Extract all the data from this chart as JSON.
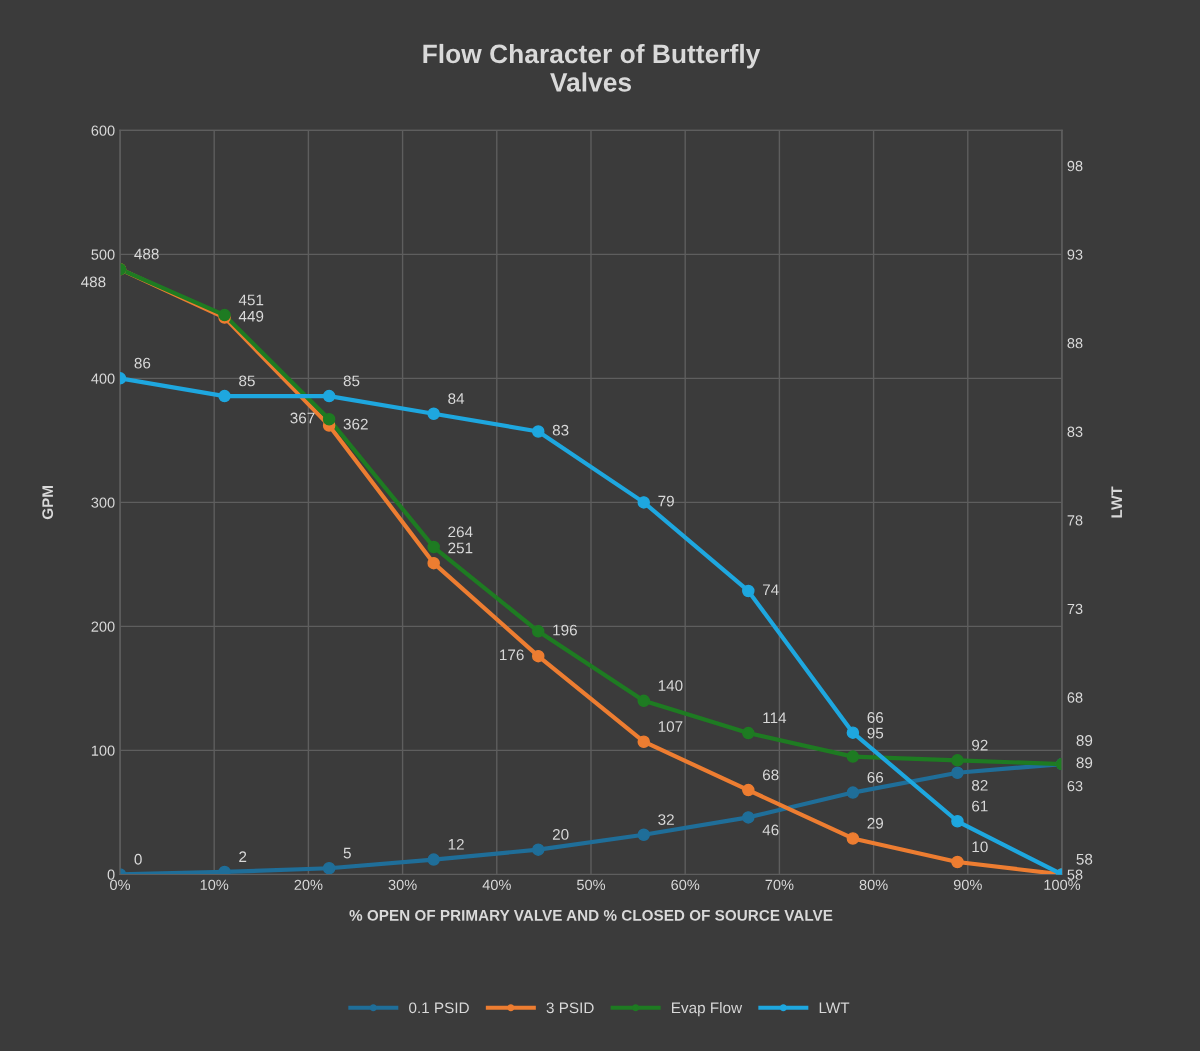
{
  "chart_data": {
    "type": "line",
    "title": "Flow Character of Butterfly\nValves",
    "xlabel": "% OPEN OF PRIMARY VALVE AND % CLOSED OF SOURCE VALVE",
    "ylabel": "GPM",
    "y2label": "LWT",
    "x": [
      0,
      11.1,
      22.2,
      33.3,
      44.4,
      55.6,
      66.7,
      77.8,
      88.9,
      100
    ],
    "series": [
      {
        "name": "0.1 PSID",
        "color": "#1f6e99",
        "values": [
          0,
          2,
          5,
          12,
          20,
          32,
          46,
          66,
          82,
          89
        ]
      },
      {
        "name": "3 PSID",
        "color": "#ed7d31",
        "values": [
          488,
          449,
          362,
          251,
          176,
          107,
          68,
          29,
          10,
          0
        ],
        "value_labels": [
          "488",
          "449",
          "362",
          "251",
          "176",
          "107",
          "68",
          "29",
          "10",
          null
        ]
      },
      {
        "name": "Evap Flow",
        "color": "#1e7b22",
        "values": [
          488,
          451,
          367,
          264,
          196,
          140,
          114,
          95,
          92,
          89
        ]
      },
      {
        "name": "LWT",
        "color": "#1ea7df",
        "axis": "y2",
        "values": [
          86,
          85,
          85,
          84,
          83,
          79,
          74,
          66,
          61,
          58
        ]
      }
    ],
    "xlim": [
      0,
      100
    ],
    "xticks": [
      {
        "value": 0,
        "label": "0%"
      },
      {
        "value": 10,
        "label": "10%"
      },
      {
        "value": 20,
        "label": "20%"
      },
      {
        "value": 30,
        "label": "30%"
      },
      {
        "value": 40,
        "label": "40%"
      },
      {
        "value": 50,
        "label": "50%"
      },
      {
        "value": 60,
        "label": "60%"
      },
      {
        "value": 70,
        "label": "70%"
      },
      {
        "value": 80,
        "label": "80%"
      },
      {
        "value": 90,
        "label": "90%"
      },
      {
        "value": 100,
        "label": "100%"
      }
    ],
    "ylim": [
      0,
      600
    ],
    "yticks": [
      0,
      100,
      200,
      300,
      400,
      500,
      600
    ],
    "y2lim": [
      58,
      100
    ],
    "y2ticks": [
      58,
      63,
      68,
      73,
      78,
      83,
      88,
      93,
      98
    ],
    "data_labels": true,
    "grid": true,
    "legend": "bottom",
    "marker": "circle",
    "line_style": "solid"
  }
}
